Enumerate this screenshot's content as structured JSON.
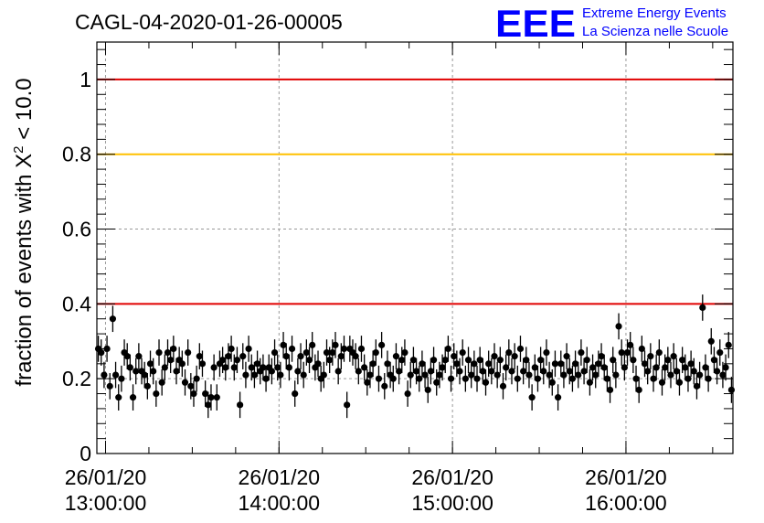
{
  "chart_data": {
    "type": "scatter",
    "title": "CAGL-04-2020-01-26-00005",
    "xlabel": "",
    "ylabel_main": "fraction of events with X",
    "ylabel_sup": "2",
    "ylabel_tail": " < 10.0",
    "x_unit": "minutes after 26/01/20 12:57:00",
    "xlim": [
      0,
      220
    ],
    "ylim": [
      0,
      1.1
    ],
    "x_ticks": [
      {
        "x": 3,
        "line1": "26/01/20",
        "line2": "13:00:00"
      },
      {
        "x": 63,
        "line1": "26/01/20",
        "line2": "14:00:00"
      },
      {
        "x": 123,
        "line1": "26/01/20",
        "line2": "15:00:00"
      },
      {
        "x": 183,
        "line1": "26/01/20",
        "line2": "16:00:00"
      }
    ],
    "y_ticks": [
      {
        "y": 0,
        "label": "0"
      },
      {
        "y": 0.2,
        "label": "0.2"
      },
      {
        "y": 0.4,
        "label": "0.4"
      },
      {
        "y": 0.6,
        "label": "0.6"
      },
      {
        "y": 0.8,
        "label": "0.8"
      },
      {
        "y": 1.0,
        "label": "1"
      }
    ],
    "grid": true,
    "reference_lines": [
      {
        "y": 1.0,
        "color": "#e00000"
      },
      {
        "y": 0.8,
        "color": "#ffc000"
      },
      {
        "y": 0.4,
        "color": "#e00000"
      }
    ],
    "marker_color": "#000000",
    "error": 0.035,
    "points": [
      [
        0.5,
        0.28
      ],
      [
        1.5,
        0.27
      ],
      [
        2.5,
        0.21
      ],
      [
        3.5,
        0.28
      ],
      [
        4.5,
        0.18
      ],
      [
        5.5,
        0.36
      ],
      [
        6.5,
        0.21
      ],
      [
        7.5,
        0.15
      ],
      [
        8.5,
        0.2
      ],
      [
        9.5,
        0.27
      ],
      [
        10.5,
        0.26
      ],
      [
        11.5,
        0.23
      ],
      [
        12.5,
        0.15
      ],
      [
        13.5,
        0.22
      ],
      [
        14.5,
        0.26
      ],
      [
        15.5,
        0.22
      ],
      [
        16.5,
        0.21
      ],
      [
        17.5,
        0.18
      ],
      [
        18.5,
        0.24
      ],
      [
        19.5,
        0.22
      ],
      [
        20.5,
        0.16
      ],
      [
        21.5,
        0.27
      ],
      [
        22.5,
        0.19
      ],
      [
        23.5,
        0.23
      ],
      [
        24.5,
        0.27
      ],
      [
        25.5,
        0.25
      ],
      [
        26.5,
        0.28
      ],
      [
        27.5,
        0.22
      ],
      [
        28.5,
        0.25
      ],
      [
        29.5,
        0.24
      ],
      [
        30.5,
        0.19
      ],
      [
        31.5,
        0.27
      ],
      [
        32.5,
        0.18
      ],
      [
        33.5,
        0.16
      ],
      [
        34.5,
        0.2
      ],
      [
        35.5,
        0.26
      ],
      [
        36.5,
        0.24
      ],
      [
        37.5,
        0.16
      ],
      [
        38.5,
        0.13
      ],
      [
        39.5,
        0.15
      ],
      [
        40.5,
        0.23
      ],
      [
        41.5,
        0.15
      ],
      [
        42.5,
        0.24
      ],
      [
        43.5,
        0.25
      ],
      [
        44.5,
        0.23
      ],
      [
        45.5,
        0.26
      ],
      [
        46.5,
        0.28
      ],
      [
        47.5,
        0.23
      ],
      [
        48.5,
        0.25
      ],
      [
        49.5,
        0.13
      ],
      [
        50.5,
        0.26
      ],
      [
        51.5,
        0.21
      ],
      [
        52.5,
        0.28
      ],
      [
        53.5,
        0.23
      ],
      [
        54.5,
        0.21
      ],
      [
        55.5,
        0.24
      ],
      [
        56.5,
        0.22
      ],
      [
        57.5,
        0.23
      ],
      [
        58.5,
        0.2
      ],
      [
        59.5,
        0.23
      ],
      [
        60.5,
        0.22
      ],
      [
        61.5,
        0.27
      ],
      [
        62.5,
        0.23
      ],
      [
        63.5,
        0.21
      ],
      [
        64.5,
        0.29
      ],
      [
        65.5,
        0.26
      ],
      [
        66.5,
        0.23
      ],
      [
        67.5,
        0.28
      ],
      [
        68.5,
        0.16
      ],
      [
        69.5,
        0.22
      ],
      [
        70.5,
        0.26
      ],
      [
        71.5,
        0.21
      ],
      [
        72.5,
        0.27
      ],
      [
        73.5,
        0.25
      ],
      [
        74.5,
        0.29
      ],
      [
        75.5,
        0.23
      ],
      [
        76.5,
        0.24
      ],
      [
        77.5,
        0.2
      ],
      [
        78.5,
        0.21
      ],
      [
        79.5,
        0.27
      ],
      [
        80.5,
        0.25
      ],
      [
        81.5,
        0.27
      ],
      [
        82.5,
        0.29
      ],
      [
        83.5,
        0.22
      ],
      [
        84.5,
        0.26
      ],
      [
        85.5,
        0.28
      ],
      [
        86.5,
        0.13
      ],
      [
        87.5,
        0.28
      ],
      [
        88.5,
        0.27
      ],
      [
        89.5,
        0.26
      ],
      [
        90.5,
        0.22
      ],
      [
        91.5,
        0.28
      ],
      [
        92.5,
        0.23
      ],
      [
        93.5,
        0.19
      ],
      [
        94.5,
        0.21
      ],
      [
        95.5,
        0.24
      ],
      [
        96.5,
        0.27
      ],
      [
        97.5,
        0.2
      ],
      [
        98.5,
        0.29
      ],
      [
        99.5,
        0.18
      ],
      [
        100.5,
        0.24
      ],
      [
        101.5,
        0.21
      ],
      [
        102.5,
        0.2
      ],
      [
        103.5,
        0.26
      ],
      [
        104.5,
        0.22
      ],
      [
        105.5,
        0.25
      ],
      [
        106.5,
        0.27
      ],
      [
        107.5,
        0.16
      ],
      [
        108.5,
        0.21
      ],
      [
        109.5,
        0.25
      ],
      [
        110.5,
        0.22
      ],
      [
        111.5,
        0.2
      ],
      [
        112.5,
        0.24
      ],
      [
        113.5,
        0.21
      ],
      [
        114.5,
        0.17
      ],
      [
        115.5,
        0.22
      ],
      [
        116.5,
        0.25
      ],
      [
        117.5,
        0.19
      ],
      [
        118.5,
        0.21
      ],
      [
        119.5,
        0.23
      ],
      [
        120.5,
        0.25
      ],
      [
        121.5,
        0.28
      ],
      [
        122.5,
        0.2
      ],
      [
        123.5,
        0.26
      ],
      [
        124.5,
        0.24
      ],
      [
        125.5,
        0.22
      ],
      [
        126.5,
        0.27
      ],
      [
        127.5,
        0.2
      ],
      [
        128.5,
        0.25
      ],
      [
        129.5,
        0.21
      ],
      [
        130.5,
        0.24
      ],
      [
        131.5,
        0.2
      ],
      [
        132.5,
        0.25
      ],
      [
        133.5,
        0.22
      ],
      [
        134.5,
        0.19
      ],
      [
        135.5,
        0.24
      ],
      [
        136.5,
        0.22
      ],
      [
        137.5,
        0.26
      ],
      [
        138.5,
        0.21
      ],
      [
        139.5,
        0.25
      ],
      [
        140.5,
        0.18
      ],
      [
        141.5,
        0.23
      ],
      [
        142.5,
        0.27
      ],
      [
        143.5,
        0.22
      ],
      [
        144.5,
        0.26
      ],
      [
        145.5,
        0.2
      ],
      [
        146.5,
        0.28
      ],
      [
        147.5,
        0.22
      ],
      [
        148.5,
        0.25
      ],
      [
        149.5,
        0.21
      ],
      [
        150.5,
        0.15
      ],
      [
        151.5,
        0.23
      ],
      [
        152.5,
        0.2
      ],
      [
        153.5,
        0.25
      ],
      [
        154.5,
        0.22
      ],
      [
        155.5,
        0.27
      ],
      [
        156.5,
        0.21
      ],
      [
        157.5,
        0.19
      ],
      [
        158.5,
        0.24
      ],
      [
        159.5,
        0.15
      ],
      [
        160.5,
        0.24
      ],
      [
        161.5,
        0.21
      ],
      [
        162.5,
        0.26
      ],
      [
        163.5,
        0.22
      ],
      [
        164.5,
        0.2
      ],
      [
        165.5,
        0.24
      ],
      [
        166.5,
        0.21
      ],
      [
        167.5,
        0.27
      ],
      [
        168.5,
        0.22
      ],
      [
        169.5,
        0.25
      ],
      [
        170.5,
        0.19
      ],
      [
        171.5,
        0.23
      ],
      [
        172.5,
        0.21
      ],
      [
        173.5,
        0.24
      ],
      [
        174.5,
        0.26
      ],
      [
        175.5,
        0.23
      ],
      [
        176.5,
        0.2
      ],
      [
        177.5,
        0.17
      ],
      [
        178.5,
        0.25
      ],
      [
        179.5,
        0.21
      ],
      [
        180.5,
        0.34
      ],
      [
        181.5,
        0.27
      ],
      [
        182.5,
        0.23
      ],
      [
        183.5,
        0.27
      ],
      [
        184.5,
        0.29
      ],
      [
        185.5,
        0.25
      ],
      [
        186.5,
        0.2
      ],
      [
        187.5,
        0.17
      ],
      [
        188.5,
        0.28
      ],
      [
        189.5,
        0.24
      ],
      [
        190.5,
        0.22
      ],
      [
        191.5,
        0.26
      ],
      [
        192.5,
        0.2
      ],
      [
        193.5,
        0.23
      ],
      [
        194.5,
        0.27
      ],
      [
        195.5,
        0.19
      ],
      [
        196.5,
        0.23
      ],
      [
        197.5,
        0.25
      ],
      [
        198.5,
        0.21
      ],
      [
        199.5,
        0.26
      ],
      [
        200.5,
        0.22
      ],
      [
        201.5,
        0.19
      ],
      [
        202.5,
        0.25
      ],
      [
        203.5,
        0.23
      ],
      [
        204.5,
        0.2
      ],
      [
        205.5,
        0.24
      ],
      [
        206.5,
        0.22
      ],
      [
        207.5,
        0.18
      ],
      [
        208.5,
        0.21
      ],
      [
        209.5,
        0.39
      ],
      [
        210.5,
        0.23
      ],
      [
        211.5,
        0.2
      ],
      [
        212.5,
        0.3
      ],
      [
        213.5,
        0.25
      ],
      [
        214.5,
        0.22
      ],
      [
        215.5,
        0.27
      ],
      [
        216.5,
        0.21
      ],
      [
        217.5,
        0.23
      ],
      [
        218.5,
        0.29
      ],
      [
        219.5,
        0.17
      ]
    ]
  },
  "logo": {
    "mark": "EEE",
    "line1": "Extreme Energy Events",
    "line2": "La Scienza nelle Scuole",
    "color": "#0000ff"
  }
}
